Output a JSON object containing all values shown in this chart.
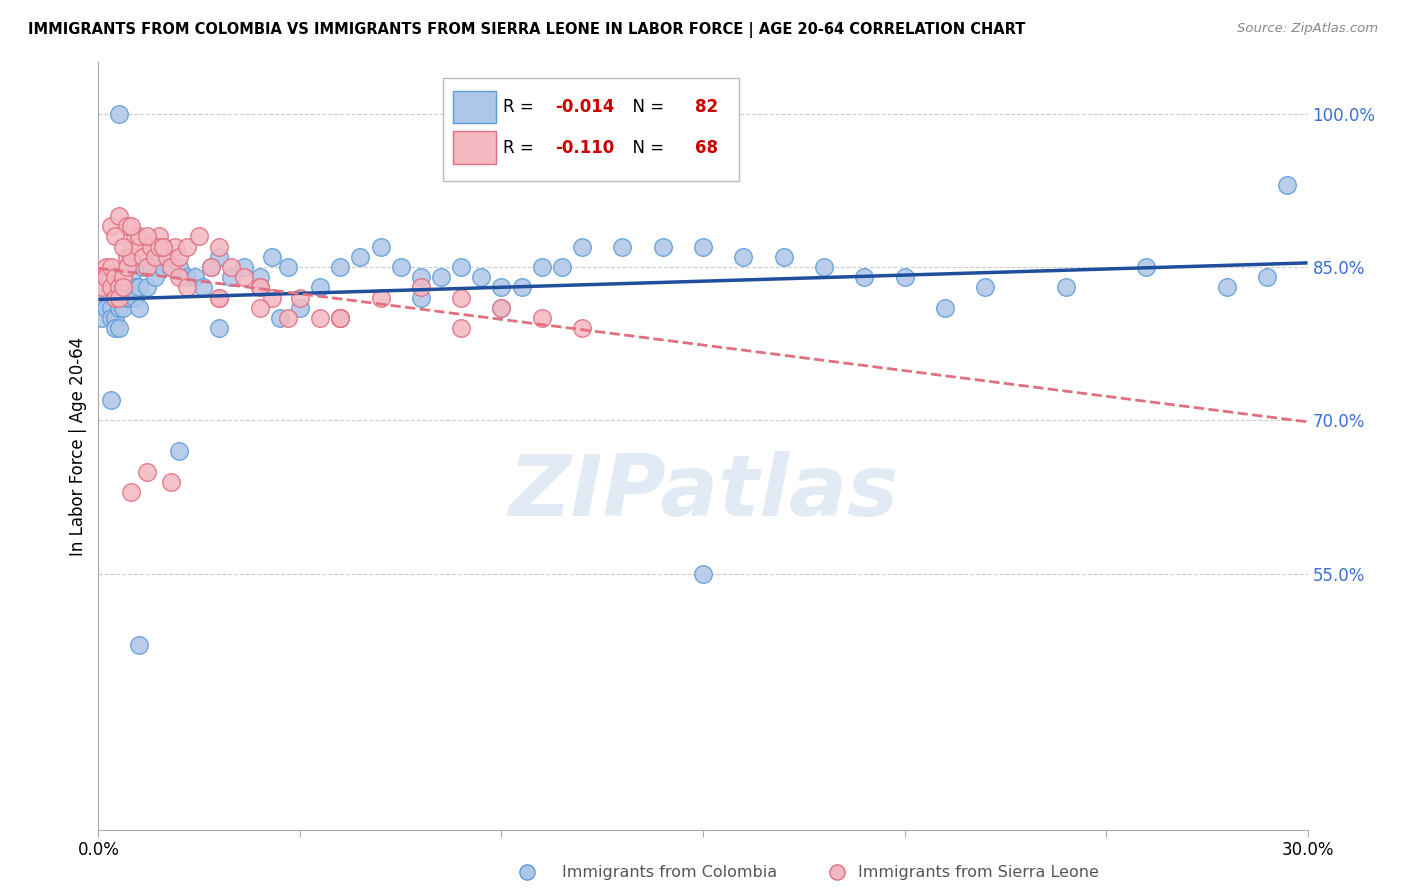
{
  "title": "IMMIGRANTS FROM COLOMBIA VS IMMIGRANTS FROM SIERRA LEONE IN LABOR FORCE | AGE 20-64 CORRELATION CHART",
  "source": "Source: ZipAtlas.com",
  "ylabel": "In Labor Force | Age 20-64",
  "xlim": [
    0.0,
    0.3
  ],
  "ylim": [
    0.3,
    1.05
  ],
  "yticks": [
    1.0,
    0.85,
    0.7,
    0.55
  ],
  "ytick_labels": [
    "100.0%",
    "85.0%",
    "70.0%",
    "55.0%"
  ],
  "xticks": [
    0.0,
    0.05,
    0.1,
    0.15,
    0.2,
    0.25,
    0.3
  ],
  "xtick_labels": [
    "0.0%",
    "",
    "",
    "",
    "",
    "",
    "30.0%"
  ],
  "colombia_color": "#aec6e8",
  "colombia_edge": "#5b9bd5",
  "sierra_leone_color": "#f4b8c1",
  "sierra_leone_edge": "#e06c7e",
  "colombia_R": -0.014,
  "colombia_N": 82,
  "sierra_leone_R": -0.11,
  "sierra_leone_N": 68,
  "colombia_line_color": "#1f4e9c",
  "sierra_leone_line_color": "#e07080",
  "colombia_x": [
    0.001,
    0.001,
    0.002,
    0.002,
    0.003,
    0.003,
    0.003,
    0.004,
    0.004,
    0.004,
    0.005,
    0.005,
    0.005,
    0.006,
    0.006,
    0.006,
    0.007,
    0.007,
    0.008,
    0.008,
    0.009,
    0.009,
    0.01,
    0.01,
    0.011,
    0.012,
    0.013,
    0.014,
    0.015,
    0.016,
    0.018,
    0.02,
    0.022,
    0.024,
    0.026,
    0.028,
    0.03,
    0.033,
    0.036,
    0.04,
    0.043,
    0.047,
    0.05,
    0.055,
    0.06,
    0.065,
    0.07,
    0.075,
    0.08,
    0.085,
    0.09,
    0.095,
    0.1,
    0.105,
    0.11,
    0.115,
    0.12,
    0.13,
    0.14,
    0.15,
    0.16,
    0.17,
    0.18,
    0.19,
    0.2,
    0.21,
    0.22,
    0.24,
    0.26,
    0.28,
    0.29,
    0.295,
    0.15,
    0.1,
    0.08,
    0.06,
    0.045,
    0.03,
    0.02,
    0.01,
    0.005,
    0.003
  ],
  "colombia_y": [
    0.82,
    0.8,
    0.84,
    0.81,
    0.83,
    0.81,
    0.8,
    0.82,
    0.8,
    0.79,
    0.83,
    0.81,
    0.79,
    0.84,
    0.82,
    0.81,
    0.83,
    0.82,
    0.84,
    0.82,
    0.83,
    0.82,
    0.83,
    0.81,
    0.85,
    0.83,
    0.85,
    0.84,
    0.86,
    0.85,
    0.85,
    0.85,
    0.84,
    0.84,
    0.83,
    0.85,
    0.86,
    0.84,
    0.85,
    0.84,
    0.86,
    0.85,
    0.81,
    0.83,
    0.85,
    0.86,
    0.87,
    0.85,
    0.84,
    0.84,
    0.85,
    0.84,
    0.83,
    0.83,
    0.85,
    0.85,
    0.87,
    0.87,
    0.87,
    0.87,
    0.86,
    0.86,
    0.85,
    0.84,
    0.84,
    0.81,
    0.83,
    0.83,
    0.85,
    0.83,
    0.84,
    0.93,
    0.55,
    0.81,
    0.82,
    0.8,
    0.8,
    0.79,
    0.67,
    0.48,
    1.0,
    0.72
  ],
  "sierra_leone_x": [
    0.001,
    0.001,
    0.002,
    0.002,
    0.003,
    0.003,
    0.004,
    0.004,
    0.005,
    0.005,
    0.006,
    0.006,
    0.007,
    0.007,
    0.008,
    0.008,
    0.009,
    0.01,
    0.011,
    0.012,
    0.013,
    0.014,
    0.015,
    0.016,
    0.017,
    0.018,
    0.019,
    0.02,
    0.022,
    0.025,
    0.028,
    0.03,
    0.033,
    0.036,
    0.04,
    0.043,
    0.047,
    0.05,
    0.055,
    0.06,
    0.07,
    0.08,
    0.09,
    0.1,
    0.11,
    0.12,
    0.003,
    0.005,
    0.007,
    0.01,
    0.015,
    0.02,
    0.03,
    0.04,
    0.06,
    0.09,
    0.004,
    0.006,
    0.008,
    0.012,
    0.016,
    0.022,
    0.03,
    0.04,
    0.06,
    0.018,
    0.012,
    0.008
  ],
  "sierra_leone_y": [
    0.84,
    0.83,
    0.85,
    0.84,
    0.85,
    0.83,
    0.84,
    0.82,
    0.83,
    0.82,
    0.84,
    0.83,
    0.86,
    0.85,
    0.87,
    0.86,
    0.88,
    0.87,
    0.86,
    0.85,
    0.87,
    0.86,
    0.88,
    0.87,
    0.86,
    0.85,
    0.87,
    0.86,
    0.87,
    0.88,
    0.85,
    0.87,
    0.85,
    0.84,
    0.83,
    0.82,
    0.8,
    0.82,
    0.8,
    0.8,
    0.82,
    0.83,
    0.82,
    0.81,
    0.8,
    0.79,
    0.89,
    0.9,
    0.89,
    0.88,
    0.87,
    0.84,
    0.82,
    0.83,
    0.8,
    0.79,
    0.88,
    0.87,
    0.89,
    0.88,
    0.87,
    0.83,
    0.82,
    0.81,
    0.8,
    0.64,
    0.65,
    0.63
  ]
}
